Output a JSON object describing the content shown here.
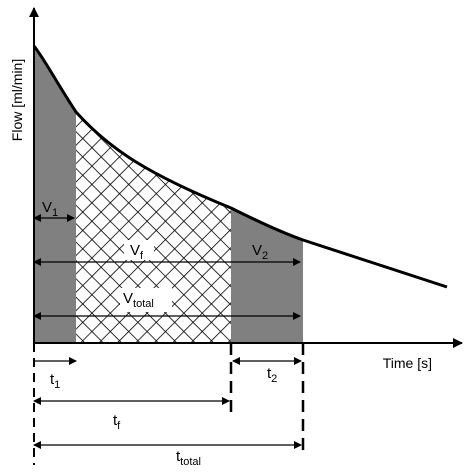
{
  "diagram": {
    "y_axis_label": "Flow [ml/min]",
    "x_axis_label": "Time [s]",
    "regions": {
      "v1": {
        "main": "V",
        "sub": "1"
      },
      "v2": {
        "main": "V",
        "sub": "2"
      },
      "vf": {
        "main": "V",
        "sub": "f"
      },
      "vtotal": {
        "main": "V",
        "sub": "total"
      }
    },
    "intervals": {
      "t1": {
        "main": "t",
        "sub": "1"
      },
      "t2": {
        "main": "t",
        "sub": "2"
      },
      "tf": {
        "main": "t",
        "sub": "f"
      },
      "ttotal": {
        "main": "t",
        "sub": "total"
      }
    },
    "colors": {
      "shaded": "#808080",
      "hatch": "#000000",
      "line": "#000000",
      "background": "#ffffff"
    }
  }
}
